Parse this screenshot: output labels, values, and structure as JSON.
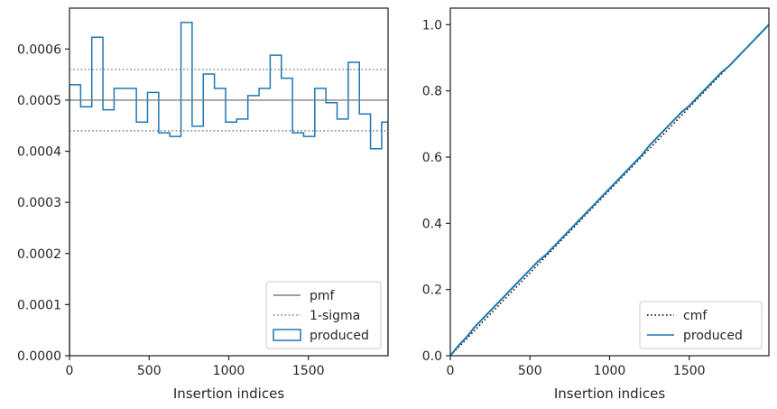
{
  "chart_data": [
    {
      "type": "step",
      "xlabel": "Insertion indices",
      "ylabel": "",
      "xlim": [
        0,
        2000
      ],
      "ylim": [
        0,
        0.00068
      ],
      "xticks": [
        0,
        500,
        1000,
        1500
      ],
      "xtick_labels": [
        "0",
        "500",
        "1000",
        "1500"
      ],
      "yticks": [
        0,
        0.0001,
        0.0002,
        0.0003,
        0.0004,
        0.0005,
        0.0006
      ],
      "ytick_labels": [
        "0.0000",
        "0.0001",
        "0.0002",
        "0.0003",
        "0.0004",
        "0.0005",
        "0.0006"
      ],
      "grid": false,
      "legend_position": "lower-right",
      "series": [
        {
          "name": "produced",
          "style": "step",
          "color": "#1f77b4",
          "bin_edges": [
            0,
            70,
            140,
            210,
            280,
            350,
            420,
            490,
            560,
            630,
            700,
            770,
            840,
            910,
            980,
            1050,
            1120,
            1190,
            1260,
            1330,
            1400,
            1470,
            1540,
            1610,
            1680,
            1750,
            1820,
            1890,
            1960,
            2000
          ],
          "values": [
            0.00053,
            0.000487,
            0.000623,
            0.000481,
            0.000523,
            0.000523,
            0.000457,
            0.000515,
            0.000436,
            0.000429,
            0.000652,
            0.000449,
            0.000551,
            0.000523,
            0.000457,
            0.000463,
            0.000509,
            0.000523,
            0.000588,
            0.000543,
            0.000436,
            0.000429,
            0.000523,
            0.000495,
            0.000463,
            0.000574,
            0.000473,
            0.000405,
            0.000457
          ]
        },
        {
          "name": "pmf",
          "style": "solid",
          "color": "#808080",
          "y": 0.0005
        },
        {
          "name": "1-sigma",
          "style": "dotted",
          "color": "#808080",
          "y": [
            0.00044,
            0.00056
          ]
        }
      ],
      "legend": [
        "pmf",
        "1-sigma",
        "produced"
      ]
    },
    {
      "type": "line",
      "xlabel": "Insertion indices",
      "ylabel": "",
      "xlim": [
        0,
        2000
      ],
      "ylim": [
        0,
        1.05
      ],
      "xticks": [
        0,
        500,
        1000,
        1500
      ],
      "xtick_labels": [
        "0",
        "500",
        "1000",
        "1500"
      ],
      "yticks": [
        0,
        0.2,
        0.4,
        0.6,
        0.8,
        1.0
      ],
      "ytick_labels": [
        "0.0",
        "0.2",
        "0.4",
        "0.6",
        "0.8",
        "1.0"
      ],
      "grid": false,
      "legend_position": "lower-right",
      "series": [
        {
          "name": "cmf",
          "style": "dotted",
          "color": "#000000",
          "x": [
            0,
            2000
          ],
          "y": [
            0,
            1.0
          ]
        },
        {
          "name": "produced",
          "style": "solid",
          "color": "#1f77b4",
          "x": [
            0,
            50,
            100,
            150,
            200,
            250,
            300,
            350,
            400,
            450,
            500,
            550,
            600,
            650,
            700,
            750,
            800,
            850,
            900,
            950,
            1000,
            1050,
            1100,
            1150,
            1200,
            1250,
            1300,
            1350,
            1400,
            1450,
            1500,
            1550,
            1600,
            1650,
            1700,
            1750,
            1800,
            1850,
            1900,
            1950,
            2000
          ],
          "y": [
            0,
            0.03,
            0.055,
            0.085,
            0.11,
            0.135,
            0.16,
            0.185,
            0.21,
            0.235,
            0.26,
            0.285,
            0.305,
            0.33,
            0.355,
            0.38,
            0.405,
            0.43,
            0.455,
            0.48,
            0.505,
            0.53,
            0.555,
            0.58,
            0.605,
            0.635,
            0.66,
            0.685,
            0.71,
            0.735,
            0.755,
            0.78,
            0.805,
            0.83,
            0.855,
            0.875,
            0.9,
            0.925,
            0.95,
            0.975,
            1.0
          ]
        }
      ],
      "legend": [
        "cmf",
        "produced"
      ]
    }
  ]
}
